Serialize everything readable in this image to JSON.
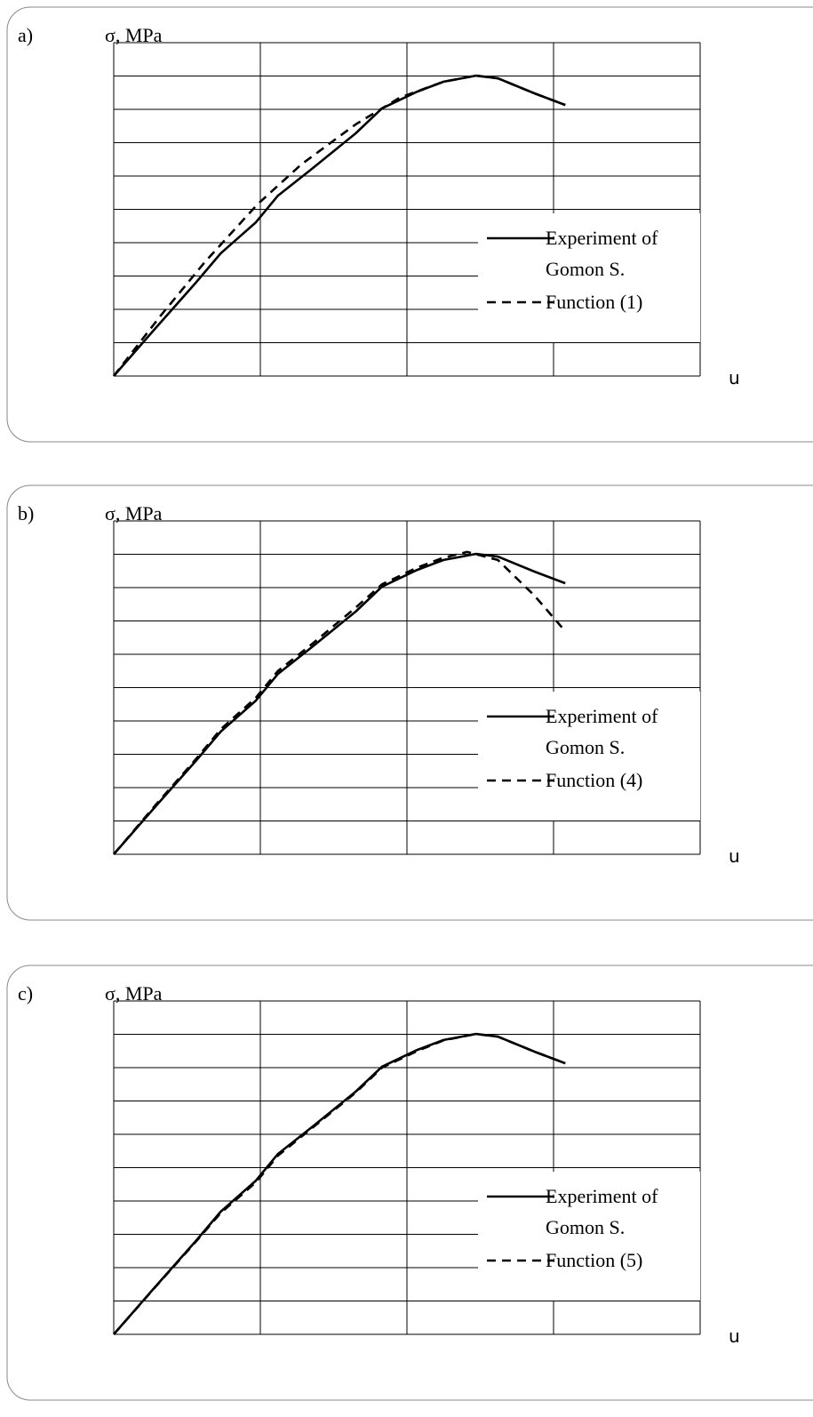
{
  "chart_data": [
    {
      "type": "line",
      "panel_label": "a)",
      "y_label": "σ, MPa",
      "x_label": "u",
      "xlim": [
        0,
        4
      ],
      "ylim": [
        0,
        10
      ],
      "xticks": [
        0,
        1,
        2,
        3,
        4
      ],
      "yticks": [
        0,
        1,
        2,
        3,
        4,
        5,
        6,
        7,
        8,
        9,
        10
      ],
      "grid": true,
      "legend": "right",
      "series": [
        {
          "name": "Experiment of Gomon S.",
          "color": "#000000",
          "style": "solid",
          "x": [
            0,
            0.28,
            0.56,
            0.73,
            0.97,
            1.12,
            1.35,
            1.65,
            1.83,
            2.07,
            2.25,
            2.47,
            2.62,
            2.87,
            3.08
          ],
          "values": [
            0,
            1.41,
            2.8,
            3.68,
            4.61,
            5.41,
            6.21,
            7.28,
            8.03,
            8.53,
            8.83,
            9.01,
            8.93,
            8.48,
            8.13
          ]
        },
        {
          "name": "Function (1)",
          "color": "#000000",
          "style": "dashed",
          "x": [
            0,
            0.32,
            0.62,
            0.98,
            1.28,
            1.65,
            1.95,
            2.25,
            2.47,
            2.62,
            2.87,
            3.08
          ],
          "values": [
            0,
            1.81,
            3.41,
            5.15,
            6.35,
            7.55,
            8.35,
            8.83,
            9.01,
            8.93,
            8.48,
            8.13
          ]
        }
      ]
    },
    {
      "type": "line",
      "panel_label": "b)",
      "y_label": "σ, MPa",
      "x_label": "u",
      "xlim": [
        0,
        4
      ],
      "ylim": [
        0,
        10
      ],
      "xticks": [
        0,
        1,
        2,
        3,
        4
      ],
      "yticks": [
        0,
        1,
        2,
        3,
        4,
        5,
        6,
        7,
        8,
        9,
        10
      ],
      "grid": true,
      "legend": "right",
      "series": [
        {
          "name": "Experiment of Gomon S.",
          "color": "#000000",
          "style": "solid",
          "x": [
            0,
            0.28,
            0.56,
            0.73,
            0.97,
            1.12,
            1.35,
            1.65,
            1.83,
            2.07,
            2.25,
            2.47,
            2.62,
            2.87,
            3.08
          ],
          "values": [
            0,
            1.41,
            2.8,
            3.68,
            4.61,
            5.41,
            6.21,
            7.28,
            8.03,
            8.53,
            8.83,
            9.01,
            8.93,
            8.48,
            8.13
          ]
        },
        {
          "name": "Function (4)",
          "color": "#000000",
          "style": "dashed",
          "x": [
            0,
            0.28,
            0.56,
            0.73,
            0.97,
            1.12,
            1.35,
            1.65,
            1.83,
            2.07,
            2.25,
            2.41,
            2.62,
            2.87,
            3.08
          ],
          "values": [
            0,
            1.45,
            2.85,
            3.75,
            4.7,
            5.5,
            6.3,
            7.4,
            8.1,
            8.6,
            8.9,
            9.07,
            8.83,
            7.76,
            6.69
          ]
        }
      ]
    },
    {
      "type": "line",
      "panel_label": "c)",
      "y_label": "σ, MPa",
      "x_label": "u",
      "xlim": [
        0,
        4
      ],
      "ylim": [
        0,
        10
      ],
      "xticks": [
        0,
        1,
        2,
        3,
        4
      ],
      "yticks": [
        0,
        1,
        2,
        3,
        4,
        5,
        6,
        7,
        8,
        9,
        10
      ],
      "grid": true,
      "legend": "right",
      "series": [
        {
          "name": "Experiment of Gomon S.",
          "color": "#000000",
          "style": "solid",
          "x": [
            0,
            0.28,
            0.56,
            0.73,
            0.97,
            1.12,
            1.35,
            1.65,
            1.83,
            2.07,
            2.25,
            2.47,
            2.62,
            2.87,
            3.08
          ],
          "values": [
            0,
            1.41,
            2.8,
            3.68,
            4.61,
            5.41,
            6.21,
            7.28,
            8.03,
            8.53,
            8.83,
            9.01,
            8.93,
            8.48,
            8.13
          ]
        },
        {
          "name": "Function (5)",
          "color": "#000000",
          "style": "dashed",
          "x": [
            0,
            0.28,
            0.56,
            0.73,
            0.97,
            1.12,
            1.35,
            1.65,
            1.83,
            2.07,
            2.25,
            2.47,
            2.62,
            2.87,
            3.08
          ],
          "values": [
            0,
            1.4,
            2.78,
            3.64,
            4.56,
            5.36,
            6.18,
            7.25,
            8.0,
            8.5,
            8.82,
            9.01,
            8.93,
            8.48,
            8.13
          ]
        }
      ]
    }
  ]
}
